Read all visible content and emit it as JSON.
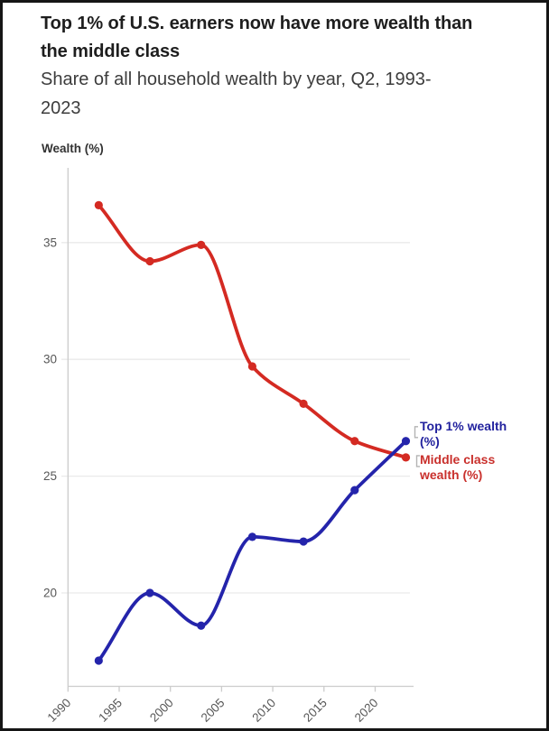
{
  "header": {
    "title": "Top 1% of U.S. earners now have more wealth than the middle class",
    "subtitle": "Share of all household wealth by year, Q2, 1993-2023",
    "axis_title": "Wealth (%)"
  },
  "chart_data": {
    "type": "line",
    "x": [
      1993,
      1998,
      2003,
      2008,
      2013,
      2018,
      2023
    ],
    "series": [
      {
        "name": "Top 1% wealth (%)",
        "label_lines": "Top 1% wealth\n(%)",
        "color": "#2424ab",
        "label_color": "#22229e",
        "values": [
          17.1,
          20.0,
          18.6,
          22.4,
          22.2,
          24.4,
          26.5
        ]
      },
      {
        "name": "Middle class wealth (%)",
        "label_lines": "Middle class\nwealth (%)",
        "color": "#d42a22",
        "label_color": "#c9302c",
        "values": [
          36.6,
          34.2,
          34.9,
          29.7,
          28.1,
          26.5,
          25.8
        ]
      }
    ],
    "title": "Top 1% of U.S. earners now have more wealth than the middle class",
    "xlabel": "",
    "ylabel": "Wealth (%)",
    "x_ticks": [
      1990,
      1995,
      2000,
      2005,
      2010,
      2015,
      2020
    ],
    "y_ticks": [
      20,
      25,
      30,
      35
    ],
    "xlim": [
      1990,
      2023.75
    ],
    "ylim": [
      16.0,
      38.2
    ],
    "grid": "horizontal",
    "legend_position": "right-end-of-lines",
    "colors": {
      "gridline": "#e9e9e9",
      "axis_line": "#cccccc",
      "tick_label": "#575757",
      "bracket": "#b3b3b3"
    }
  }
}
